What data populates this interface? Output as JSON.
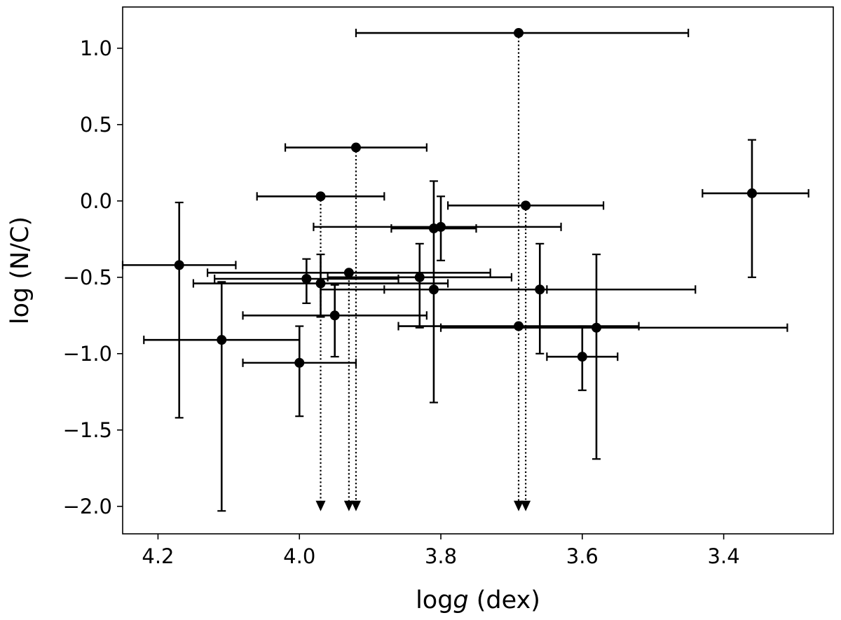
{
  "chart_data": {
    "type": "scatter",
    "xlabel_prefix": "log",
    "xlabel_italic": "g",
    "xlabel_suffix": " (dex)",
    "ylabel": "log (N/C)",
    "xlim": [
      4.25,
      3.245
    ],
    "ylim": [
      -2.18,
      1.27
    ],
    "x_reversed": true,
    "x_ticks": [
      {
        "value": 4.2,
        "label": "4.2"
      },
      {
        "value": 4.0,
        "label": "4.0"
      },
      {
        "value": 3.8,
        "label": "3.8"
      },
      {
        "value": 3.6,
        "label": "3.6"
      },
      {
        "value": 3.4,
        "label": "3.4"
      }
    ],
    "y_ticks": [
      {
        "value": 1.0,
        "label": "1.0"
      },
      {
        "value": 0.5,
        "label": "0.5"
      },
      {
        "value": 0.0,
        "label": "0.0"
      },
      {
        "value": -0.5,
        "label": "−0.5"
      },
      {
        "value": -1.0,
        "label": "−1.0"
      },
      {
        "value": -1.5,
        "label": "−1.5"
      },
      {
        "value": -2.0,
        "label": "−2.0"
      }
    ],
    "grid": false,
    "color": "#000000",
    "points": [
      {
        "x": 3.69,
        "y": 1.1,
        "xerr_low": 0.23,
        "xerr_high": 0.24
      },
      {
        "x": 3.92,
        "y": 0.35,
        "xerr_low": 0.1,
        "xerr_high": 0.1
      },
      {
        "x": 3.97,
        "y": 0.03,
        "xerr_low": 0.09,
        "xerr_high": 0.09
      },
      {
        "x": 3.68,
        "y": -0.03,
        "xerr_low": 0.11,
        "xerr_high": 0.11
      },
      {
        "x": 3.36,
        "y": 0.05,
        "xerr_low": 0.07,
        "xerr_high": 0.08,
        "yerr_low": 0.55,
        "yerr_high": 0.35
      },
      {
        "x": 3.8,
        "y": -0.17,
        "xerr_low": 0.18,
        "xerr_high": 0.17,
        "yerr_low": 0.22,
        "yerr_high": 0.2
      },
      {
        "x": 3.81,
        "y": -0.18,
        "xerr_low": 0.06,
        "xerr_high": 0.06,
        "yerr_low": 1.14,
        "yerr_high": 0.31
      },
      {
        "x": 4.17,
        "y": -0.42,
        "xerr_low": 0.08,
        "xerr_high": 0.08,
        "yerr_low": 1.0,
        "yerr_high": 0.41
      },
      {
        "x": 3.93,
        "y": -0.47,
        "xerr_low": 0.2,
        "xerr_high": 0.2
      },
      {
        "x": 3.99,
        "y": -0.51,
        "xerr_low": 0.13,
        "xerr_high": 0.13,
        "yerr_low": 0.16,
        "yerr_high": 0.13
      },
      {
        "x": 3.83,
        "y": -0.5,
        "xerr_low": 0.13,
        "xerr_high": 0.13,
        "yerr_low": 0.33,
        "yerr_high": 0.22
      },
      {
        "x": 3.97,
        "y": -0.54,
        "xerr_low": 0.18,
        "xerr_high": 0.18,
        "yerr_low": 0.22,
        "yerr_high": 0.19
      },
      {
        "x": 3.81,
        "y": -0.58,
        "xerr_low": 0.16,
        "xerr_high": 0.16
      },
      {
        "x": 3.66,
        "y": -0.58,
        "xerr_low": 0.22,
        "xerr_high": 0.22,
        "yerr_low": 0.42,
        "yerr_high": 0.3
      },
      {
        "x": 3.95,
        "y": -0.75,
        "xerr_low": 0.13,
        "xerr_high": 0.13,
        "yerr_low": 0.27,
        "yerr_high": 0.2
      },
      {
        "x": 3.69,
        "y": -0.82,
        "xerr_low": 0.17,
        "xerr_high": 0.17
      },
      {
        "x": 3.58,
        "y": -0.83,
        "xerr_low": 0.22,
        "xerr_high": 0.27,
        "yerr_low": 0.86,
        "yerr_high": 0.48
      },
      {
        "x": 4.11,
        "y": -0.91,
        "xerr_low": 0.11,
        "xerr_high": 0.11,
        "yerr_low": 1.12,
        "yerr_high": 0.38
      },
      {
        "x": 3.6,
        "y": -1.02,
        "xerr_low": 0.05,
        "xerr_high": 0.05,
        "yerr_low": 0.22,
        "yerr_high": 0.2
      },
      {
        "x": 4.0,
        "y": -1.06,
        "xerr_low": 0.08,
        "xerr_high": 0.08,
        "yerr_low": 0.35,
        "yerr_high": 0.24
      }
    ],
    "upper_limit_arrows": [
      {
        "x": 3.97,
        "y_from": 0.03,
        "y_to": -2.0
      },
      {
        "x": 3.93,
        "y_from": -0.47,
        "y_to": -2.0
      },
      {
        "x": 3.92,
        "y_from": 0.35,
        "y_to": -2.0
      },
      {
        "x": 3.69,
        "y_from": 1.1,
        "y_to": -2.0
      },
      {
        "x": 3.68,
        "y_from": -0.03,
        "y_to": -2.0
      }
    ]
  }
}
